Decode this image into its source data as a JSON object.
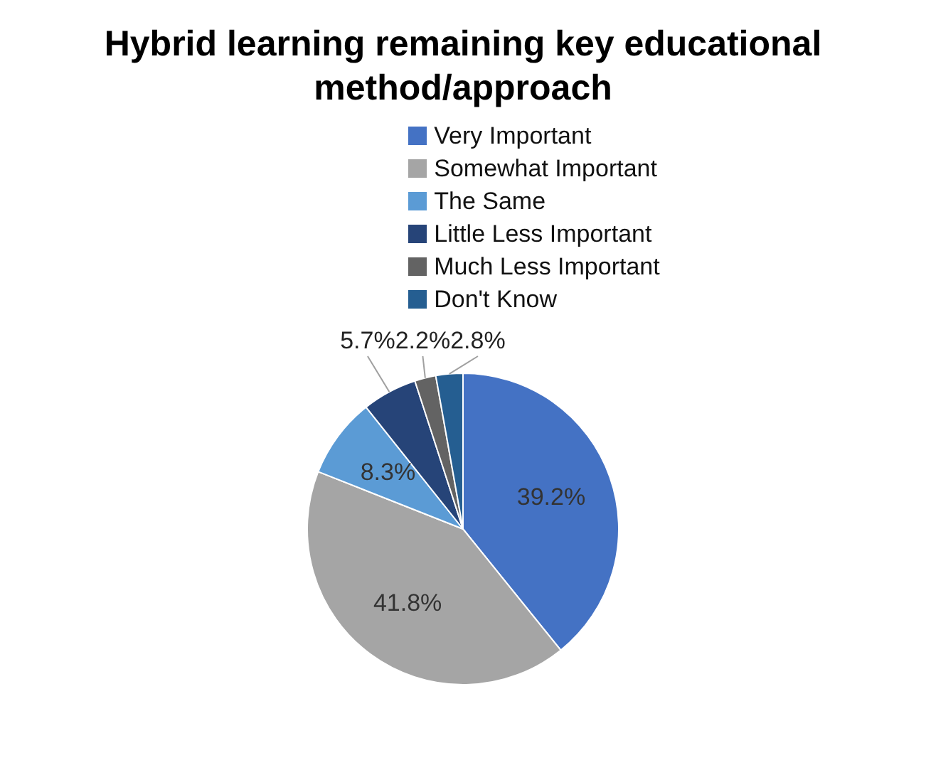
{
  "chart_data": {
    "type": "pie",
    "title": "Hybrid learning remaining key educational method/approach",
    "categories": [
      "Very Important",
      "Somewhat Important",
      "The Same",
      "Little Less Important",
      "Much Less Important",
      "Don't Know"
    ],
    "values": [
      39.2,
      41.8,
      8.3,
      5.7,
      2.2,
      2.8
    ],
    "colors": [
      "#4472c4",
      "#a5a5a5",
      "#5b9bd5",
      "#264478",
      "#636363",
      "#255e91"
    ],
    "value_labels": [
      "39.2%",
      "41.8%",
      "8.3%",
      "5.7%",
      "2.2%",
      "2.8%"
    ],
    "legend": "top"
  }
}
